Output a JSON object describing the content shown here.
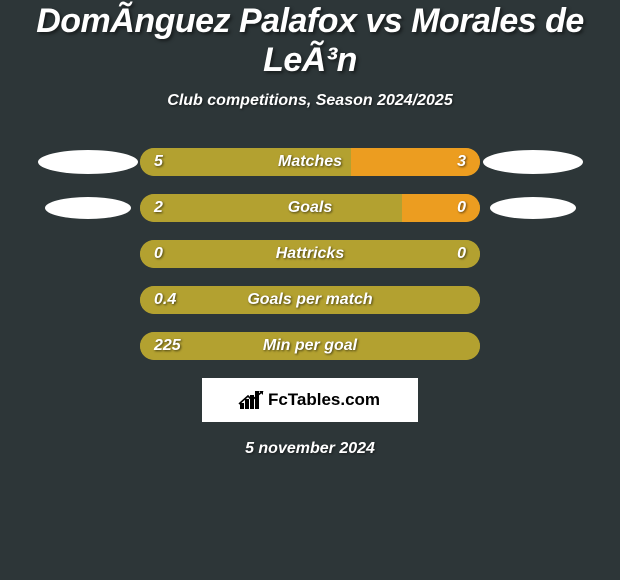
{
  "title": "DomÃ­nguez Palafox vs Morales de LeÃ³n",
  "subtitle": "Club competitions, Season 2024/2025",
  "colors": {
    "left": "#b3a130",
    "right": "#ec9d20",
    "background": "#2d3638",
    "text": "#ffffff"
  },
  "logo_text": "FcTables.com",
  "date": "5 november 2024",
  "rows": [
    {
      "label": "Matches",
      "left_value": "5",
      "right_value": "3",
      "left_width_pct": 62,
      "right_width_pct": 38,
      "show_left_icon": true,
      "show_right_icon": true,
      "icon_size": "large"
    },
    {
      "label": "Goals",
      "left_value": "2",
      "right_value": "0",
      "left_width_pct": 77,
      "right_width_pct": 23,
      "show_left_icon": true,
      "show_right_icon": true,
      "icon_size": "small"
    },
    {
      "label": "Hattricks",
      "left_value": "0",
      "right_value": "0",
      "left_width_pct": 100,
      "right_width_pct": 0,
      "show_left_icon": false,
      "show_right_icon": false
    },
    {
      "label": "Goals per match",
      "left_value": "0.4",
      "right_value": "",
      "left_width_pct": 100,
      "right_width_pct": 0,
      "show_left_icon": false,
      "show_right_icon": false
    },
    {
      "label": "Min per goal",
      "left_value": "225",
      "right_value": "",
      "left_width_pct": 100,
      "right_width_pct": 0,
      "show_left_icon": false,
      "show_right_icon": false
    }
  ]
}
